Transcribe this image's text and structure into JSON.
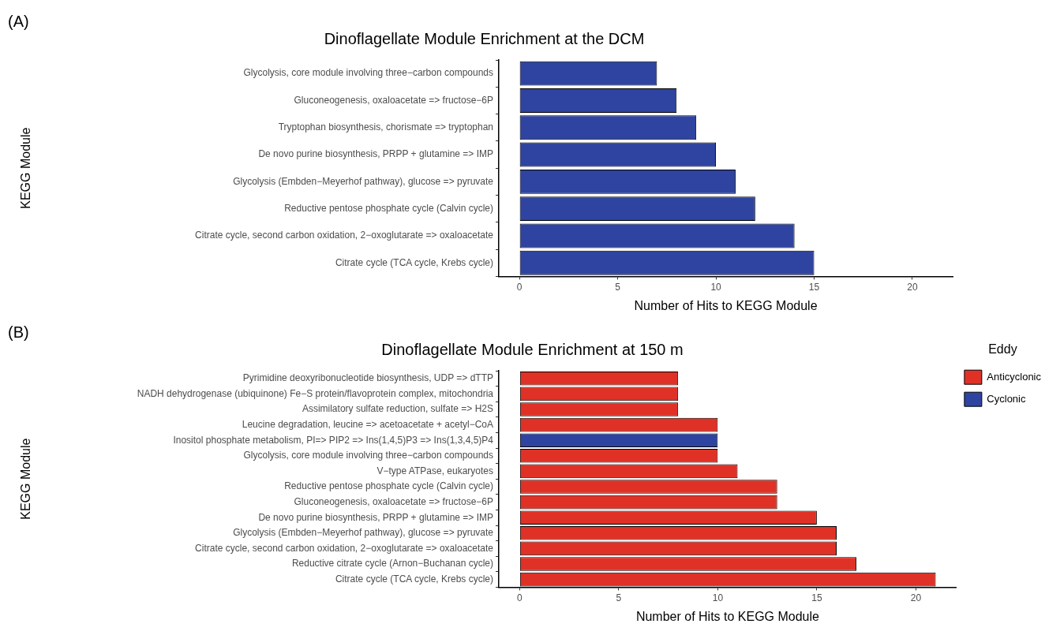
{
  "chart_data": [
    {
      "type": "bar",
      "orientation": "horizontal",
      "title": "Dinoflagellate Module Enrichment at the DCM",
      "xlabel": "Number of Hits to KEGG Module",
      "ylabel": "KEGG Module",
      "annotations": [
        "(A)"
      ],
      "categories": [
        "Glycolysis, core module involving three−carbon compounds",
        "Gluconeogenesis, oxaloacetate => fructose−6P",
        "Tryptophan biosynthesis, chorismate => tryptophan",
        "De novo purine biosynthesis, PRPP + glutamine => IMP",
        "Glycolysis (Embden−Meyerhof pathway), glucose => pyruvate",
        "Reductive pentose phosphate cycle (Calvin cycle)",
        "Citrate cycle, second carbon oxidation, 2−oxoglutarate => oxaloacetate",
        "Citrate cycle (TCA cycle, Krebs cycle)"
      ],
      "values": [
        7,
        8,
        9,
        10,
        11,
        12,
        14,
        15
      ],
      "color": "#2f44a0",
      "xlim": [
        -1.05,
        22.05
      ],
      "xticks": [
        0,
        5,
        10,
        15,
        20
      ]
    },
    {
      "type": "bar",
      "orientation": "horizontal",
      "stacked": true,
      "title": "Dinoflagellate Module Enrichment at 150 m",
      "xlabel": "Number of Hits to KEGG Module",
      "ylabel": "KEGG Module",
      "annotations": [
        "(B)"
      ],
      "legend": "right",
      "legend_title": "Eddy",
      "categories": [
        "Pyrimidine deoxyribonucleotide biosynthesis, UDP => dTTP",
        "NADH dehydrogenase (ubiquinone) Fe−S protein/flavoprotein complex, mitochondria",
        "Assimilatory sulfate reduction, sulfate => H2S",
        "Leucine degradation, leucine => acetoacetate + acetyl−CoA",
        "Inositol phosphate metabolism, PI=> PIP2 => Ins(1,4,5)P3 => Ins(1,3,4,5)P4",
        "Glycolysis, core module involving three−carbon compounds",
        "V−type ATPase, eukaryotes",
        "Reductive pentose phosphate cycle (Calvin cycle)",
        "Gluconeogenesis, oxaloacetate => fructose−6P",
        "De novo purine biosynthesis, PRPP + glutamine => IMP",
        "Glycolysis (Embden−Meyerhof pathway), glucose => pyruvate",
        "Citrate cycle, second carbon oxidation, 2−oxoglutarate => oxaloacetate",
        "Reductive citrate cycle (Arnon−Buchanan cycle)",
        "Citrate cycle (TCA cycle, Krebs cycle)"
      ],
      "series": [
        {
          "name": "Anticyclonic",
          "color": "#e03127",
          "values": [
            8,
            8,
            8,
            10,
            null,
            10,
            11,
            13,
            13,
            15,
            16,
            16,
            17,
            21
          ]
        },
        {
          "name": "Cyclonic",
          "color": "#2f44a0",
          "values": [
            null,
            null,
            null,
            null,
            10,
            null,
            null,
            null,
            null,
            null,
            null,
            null,
            null,
            null
          ]
        }
      ],
      "xlim": [
        -1.05,
        22.05
      ],
      "xticks": [
        0,
        5,
        10,
        15,
        20
      ]
    }
  ]
}
